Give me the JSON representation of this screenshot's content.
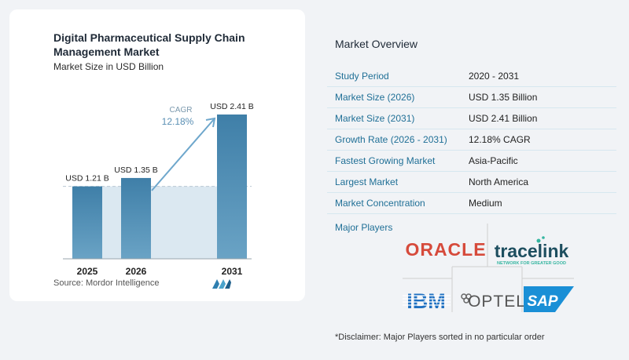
{
  "chart": {
    "title": "Digital Pharmaceutical Supply Chain Management Market",
    "subtitle": "Market Size in USD Billion",
    "source": "Source: Mordor Intelligence",
    "cagr_label": "CAGR",
    "cagr_value": "12.18%"
  },
  "chart_data": {
    "type": "bar",
    "categories": [
      "2025",
      "2026",
      "2031"
    ],
    "values": [
      1.21,
      1.35,
      2.41
    ],
    "data_labels": [
      "USD 1.21 B",
      "USD 1.35 B",
      "USD 2.41 B"
    ],
    "title": "Digital Pharmaceutical Supply Chain Management Market",
    "subtitle": "Market Size in USD Billion",
    "xlabel": "",
    "ylabel": "",
    "ylim": [
      0,
      2.6
    ],
    "grid": false,
    "annotation": "CAGR 12.18%",
    "colors": {
      "bar": "#6aa3c5",
      "bar_dark": "#3f7fa8",
      "band": "#dbe8f1",
      "arrow": "#6ea7cc"
    }
  },
  "overview": {
    "title": "Market Overview",
    "rows": [
      {
        "label": "Study Period",
        "value": "2020 - 2031"
      },
      {
        "label": "Market Size (2026)",
        "value": "USD 1.35 Billion"
      },
      {
        "label": "Market Size (2031)",
        "value": "USD 2.41 Billion"
      },
      {
        "label": "Growth Rate (2026 - 2031)",
        "value": "12.18% CAGR"
      },
      {
        "label": "Fastest Growing Market",
        "value": "Asia-Pacific"
      },
      {
        "label": "Largest Market",
        "value": "North America"
      },
      {
        "label": "Market Concentration",
        "value": "Medium"
      }
    ],
    "major_players_title": "Major Players",
    "players": {
      "oracle": "ORACLE",
      "tracelink": "tracelink",
      "tracelink_tagline": "NETWORK FOR GREATER GOOD",
      "ibm": "IBM",
      "optel": "OPTEL",
      "sap": "SAP"
    },
    "disclaimer": "*Disclaimer: Major Players sorted in no particular order"
  }
}
